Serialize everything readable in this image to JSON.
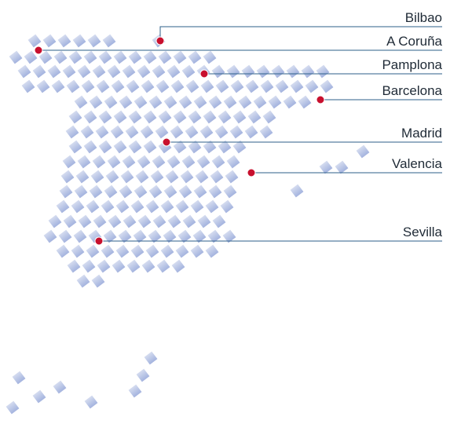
{
  "map": {
    "dot_color": "#c8102e",
    "line_color": "#2e5f8a",
    "tile_color_light": "#eef1f8",
    "tile_color_dark": "#8b9fd6"
  },
  "cities": [
    {
      "id": "bilbao",
      "name": "Bilbao"
    },
    {
      "id": "a-coruna",
      "name": "A Coruña"
    },
    {
      "id": "pamplona",
      "name": "Pamplona"
    },
    {
      "id": "barcelona",
      "name": "Barcelona"
    },
    {
      "id": "madrid",
      "name": "Madrid"
    },
    {
      "id": "valencia",
      "name": "Valencia"
    },
    {
      "id": "sevilla",
      "name": "Sevilla"
    }
  ]
}
